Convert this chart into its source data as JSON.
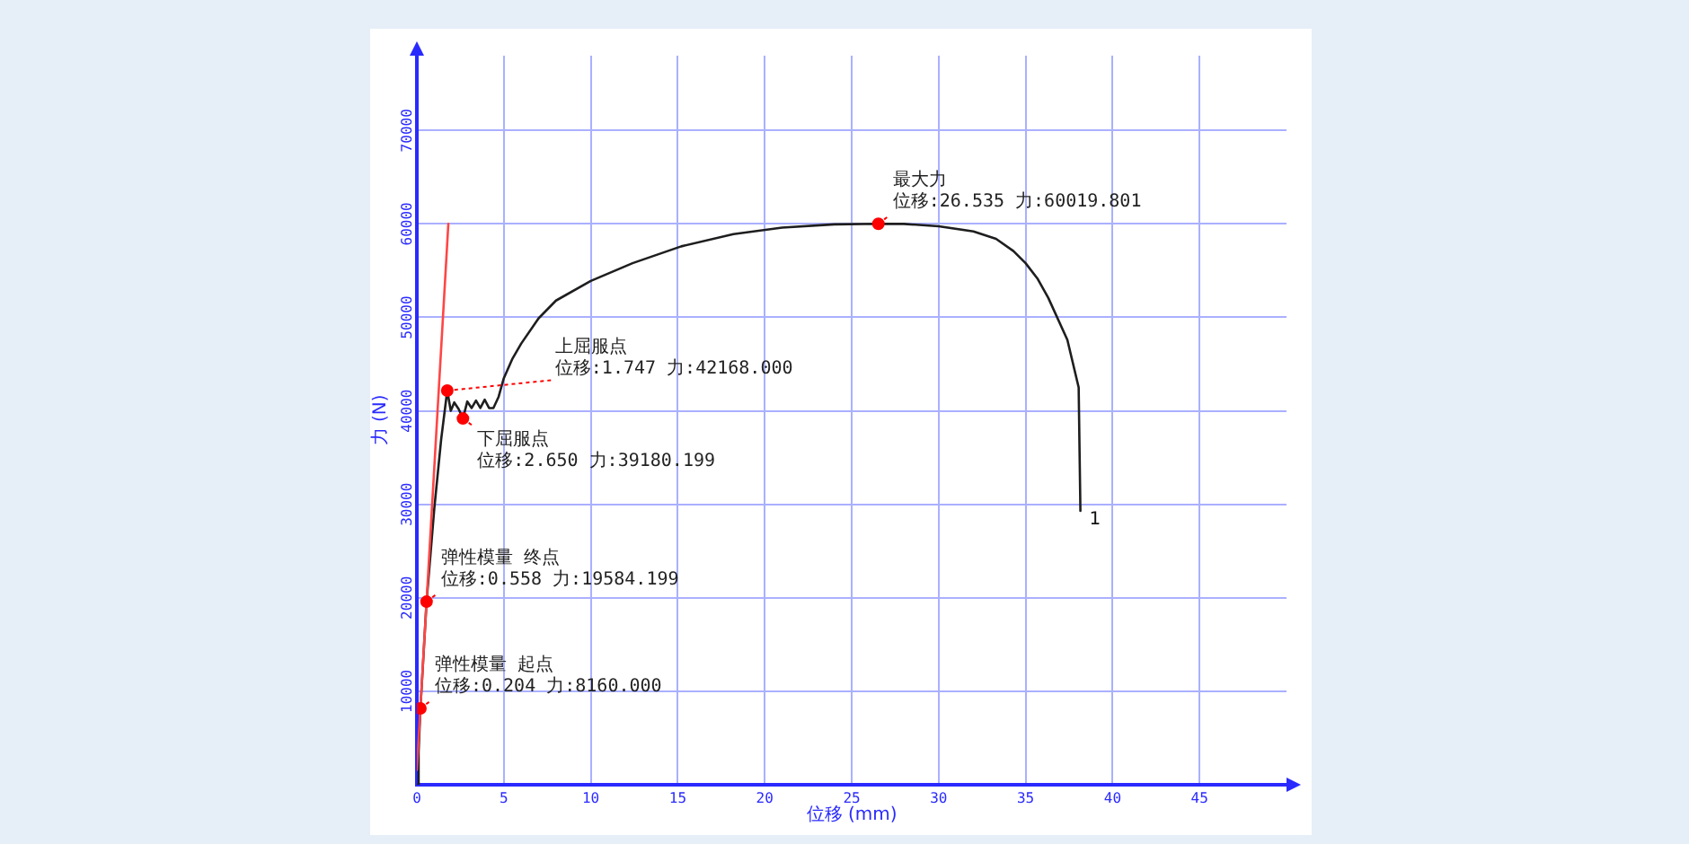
{
  "chart_data": {
    "type": "line",
    "xlabel": "位移 (mm)",
    "ylabel": "力 (N)",
    "xlim": [
      0,
      50
    ],
    "xticks": [
      0,
      5,
      10,
      15,
      20,
      25,
      30,
      35,
      40,
      45
    ],
    "ylim": [
      0,
      78000
    ],
    "yticks": [
      10000,
      20000,
      30000,
      40000,
      50000,
      60000,
      70000
    ],
    "grid": true,
    "series": [
      {
        "name": "1",
        "color": "#1e1e1e",
        "x": [
          0,
          0.1,
          0.204,
          0.558,
          1.0,
          1.4,
          1.747,
          1.95,
          2.15,
          2.4,
          2.65,
          2.9,
          3.15,
          3.4,
          3.65,
          3.9,
          4.15,
          4.4,
          4.7,
          5.0,
          5.5,
          6.0,
          7.0,
          8.0,
          10.0,
          12.4,
          15.2,
          18.2,
          21.0,
          24.0,
          26.535,
          28.0,
          30.0,
          32.0,
          33.3,
          34.3,
          35.0,
          35.7,
          36.3,
          37.4,
          38.05,
          38.15
        ],
        "values": [
          0,
          3500,
          8160,
          19584.199,
          29500,
          37000,
          42168,
          40000,
          40900,
          40200,
          39180.199,
          41000,
          40300,
          41100,
          40300,
          41200,
          40300,
          40300,
          41500,
          43500,
          45600,
          47200,
          49900,
          51800,
          53900,
          55800,
          57600,
          58900,
          59600,
          59950,
          60019.801,
          60000,
          59750,
          59200,
          58400,
          57100,
          55800,
          54100,
          52100,
          47600,
          42500,
          29300
        ]
      },
      {
        "color": "#ff4646",
        "x": [
          0,
          1.81
        ],
        "values": [
          1600,
          60000
        ]
      },
      {
        "type": "scatter",
        "color": "#ff0000",
        "marker": "circle",
        "x": [
          0.204,
          0.558,
          1.747,
          2.65,
          26.535
        ],
        "values": [
          8160,
          19584.199,
          42168,
          39180.199,
          60019.801
        ]
      }
    ],
    "annotations": [
      {
        "text": "弹性模量 起点",
        "x": 0.204,
        "y": 8160
      },
      {
        "text": "位移:0.204 力:8160.000",
        "x": 0.204,
        "y": 8160
      },
      {
        "text": "弹性模量 终点",
        "x": 0.558,
        "y": 19584.199
      },
      {
        "text": "位移:0.558 力:19584.199",
        "x": 0.558,
        "y": 19584.199
      },
      {
        "text": "上屈服点",
        "x": 1.747,
        "y": 42168
      },
      {
        "text": "位移:1.747 力:42168.000",
        "x": 1.747,
        "y": 42168
      },
      {
        "text": "下屈服点",
        "x": 2.65,
        "y": 39180.199
      },
      {
        "text": "位移:2.650 力:39180.199",
        "x": 2.65,
        "y": 39180.199
      },
      {
        "text": "最大力",
        "x": 26.535,
        "y": 60019.801
      },
      {
        "text": "位移:26.535 力:60019.801",
        "x": 26.535,
        "y": 60019.801
      }
    ]
  }
}
